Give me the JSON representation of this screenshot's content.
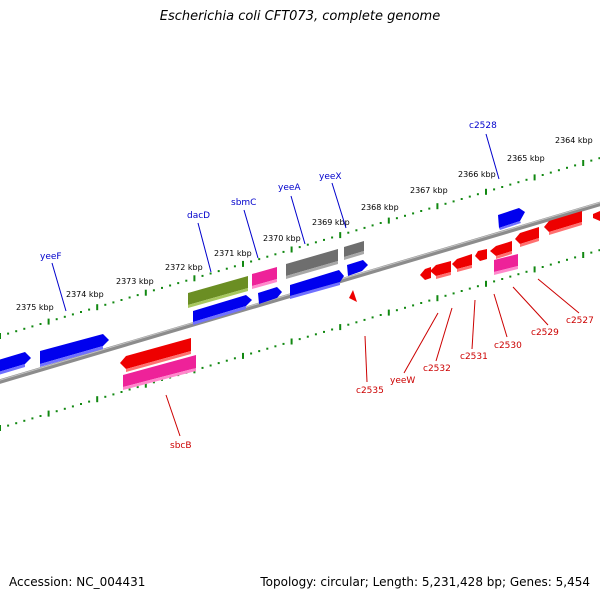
{
  "title": "Escherichia coli CFT073, complete genome",
  "footer": {
    "accession": "Accession: NC_004431",
    "topology": "Topology: circular; Length: 5,231,428 bp; Genes: 5,454"
  },
  "colors": {
    "forward_gene": "#0000ee",
    "reverse_gene": "#ee0000",
    "forward_label": "#0000cc",
    "reverse_label": "#cc0000",
    "tick_dots": "#118811",
    "backbone": "#8c8c8c",
    "gray_gene": "#6e6e6e",
    "olive_gene": "#6b8e23",
    "pink_gene": "#ee2299"
  },
  "kbp_labels": [
    "2364 kbp",
    "2365 kbp",
    "2366 kbp",
    "2367 kbp",
    "2368 kbp",
    "2369 kbp",
    "2370 kbp",
    "2371 kbp",
    "2372 kbp",
    "2373 kbp",
    "2374 kbp",
    "2375 kbp"
  ],
  "forward_labels": [
    "c2528",
    "yeeX",
    "yeeA",
    "sbmC",
    "dacD",
    "yeeF"
  ],
  "reverse_labels": [
    "c2527",
    "c2529",
    "c2530",
    "c2531",
    "c2532",
    "yeeW",
    "c2535",
    "sbcB"
  ]
}
